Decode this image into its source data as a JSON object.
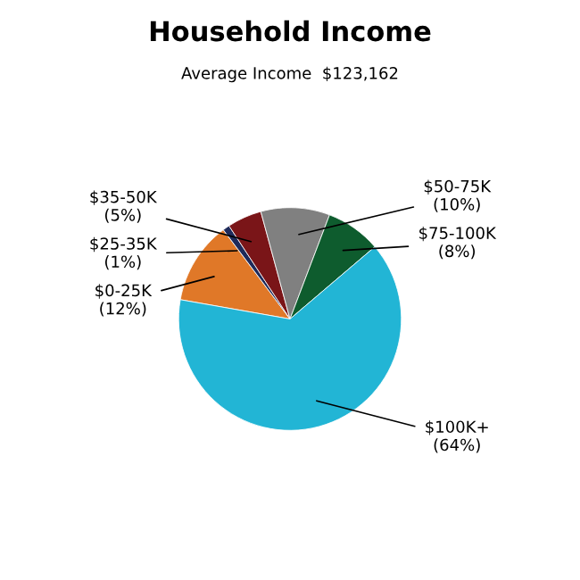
{
  "chart_data": {
    "type": "pie",
    "title": "Household Income",
    "subtitle": "Average Income  $123,162",
    "categories": [
      "$0-25K",
      "$25-35K",
      "$35-50K",
      "$50-75K",
      "$75-100K",
      "$100K+"
    ],
    "values": [
      12,
      1,
      5,
      10,
      8,
      64
    ],
    "value_labels": [
      "(12%)",
      "(1%)",
      "(5%)",
      "(10%)",
      "(8%)",
      "(64%)"
    ],
    "colors": [
      "#e07828",
      "#1e2a5a",
      "#7a1518",
      "#808080",
      "#0e5c2e",
      "#22b5d5"
    ]
  }
}
